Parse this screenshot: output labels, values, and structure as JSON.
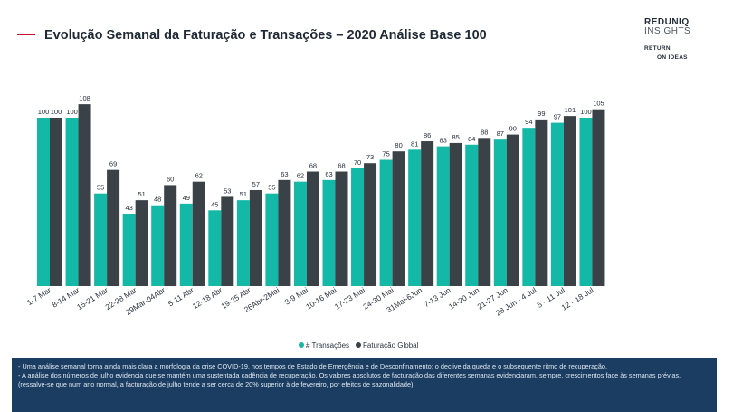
{
  "header": {
    "title": "Evolução Semanal da Faturação e Transações – 2020 Análise Base 100",
    "brand_line1": "REDUNIQ",
    "brand_line2": "INSIGHTS",
    "brand_line3": "RETURN",
    "brand_line4": "ON IDEAS"
  },
  "chart_data": {
    "type": "bar",
    "categories": [
      "1-7 Mar",
      "8-14 Mar",
      "15-21 Mar",
      "22-28 Mar",
      "29Mar-04Abr",
      "5-11 Abr",
      "12-18 Abr",
      "19-25 Abr",
      "26Abr-2Mai",
      "3-9 Mai",
      "10-16 Mai",
      "17-23 Mai",
      "24-30 Mai",
      "31Mai-6Jun",
      "7-13 Jun",
      "14-20 Jun",
      "21-27 Jun",
      "28 Jun - 4 Jul",
      "5 - 11 Jul",
      "12 - 18 Jul"
    ],
    "series": [
      {
        "name": "# Transações",
        "color": "#14b8a6",
        "values": [
          100,
          100,
          55,
          43,
          48,
          49,
          45,
          51,
          55,
          62,
          63,
          70,
          75,
          81,
          83,
          84,
          87,
          94,
          97,
          100
        ]
      },
      {
        "name": "Faturação Global",
        "color": "#3a4248",
        "values": [
          100,
          108,
          69,
          51,
          60,
          62,
          53,
          57,
          63,
          68,
          68,
          73,
          80,
          86,
          85,
          88,
          90,
          99,
          101,
          105
        ]
      }
    ],
    "ylim": [
      0,
      115
    ],
    "grid": false,
    "legend_position": "bottom-center"
  },
  "footer": {
    "line1": "- Uma análise semanal torna ainda mais clara a morfologia da crise COVID-19, nos tempos de Estado de Emergência e de Desconfinamento: o declive da queda e o subsequente ritmo de recuperação.",
    "line2": "- A análise dos números de julho evidencia que se mantém uma sustentada cadência de recuperação. Os valores absolutos de facturação das diferentes semanas evidenciaram, sempre, crescimentos face às semanas prévias. (ressalve-se que num ano normal, a facturação de julho tende a ser cerca de 20% superior à de fevereiro, por efeitos de sazonalidade)."
  }
}
